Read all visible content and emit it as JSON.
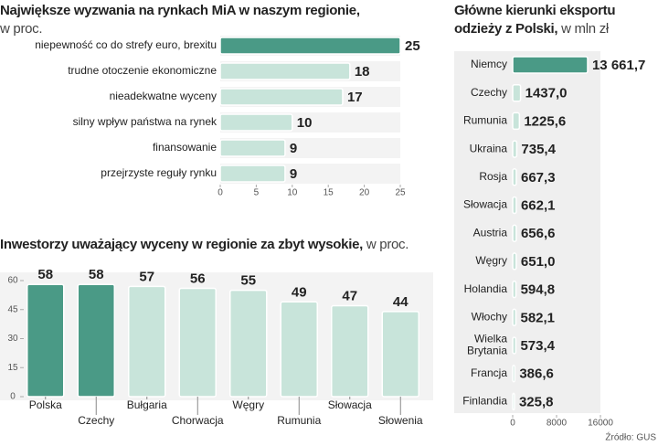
{
  "chart_data": [
    {
      "type": "bar",
      "orientation": "horizontal",
      "title": "Największe wyzwania na rynkach MiA w naszym regionie,",
      "subtitle": "w proc.",
      "categories": [
        "niepewność co do strefy euro, brexitu",
        "trudne otoczenie ekonomiczne",
        "nieadekwatne wyceny",
        "silny wpływ państwa na rynek",
        "finansowanie",
        "przejrzyste reguły rynku"
      ],
      "values": [
        25,
        18,
        17,
        10,
        9,
        9
      ],
      "colors": [
        "#4a9a86",
        "#c8e4da",
        "#c8e4da",
        "#c8e4da",
        "#c8e4da",
        "#c8e4da"
      ],
      "xlim": [
        0,
        25
      ],
      "xticks": [
        0,
        5,
        10,
        15,
        20,
        25
      ]
    },
    {
      "type": "bar",
      "orientation": "vertical",
      "title": "Inwestorzy uważający wyceny w regionie za zbyt wysokie,",
      "subtitle": "w proc.",
      "categories": [
        "Polska",
        "Czechy",
        "Bułgaria",
        "Chorwacja",
        "Węgry",
        "Rumunia",
        "Słowacja",
        "Słowenia"
      ],
      "values": [
        58,
        58,
        57,
        56,
        55,
        49,
        47,
        44
      ],
      "colors": [
        "#4a9a86",
        "#4a9a86",
        "#c8e4da",
        "#c8e4da",
        "#c8e4da",
        "#c8e4da",
        "#c8e4da",
        "#c8e4da"
      ],
      "ylim": [
        0,
        60
      ],
      "yticks": [
        0,
        15,
        30,
        45,
        60
      ]
    },
    {
      "type": "bar",
      "orientation": "horizontal",
      "title": "Główne kierunki eksportu odzieży z Polski,",
      "subtitle": "w mln zł",
      "categories": [
        "Niemcy",
        "Czechy",
        "Rumunia",
        "Ukraina",
        "Rosja",
        "Słowacja",
        "Austria",
        "Węgry",
        "Holandia",
        "Włochy",
        "Wielka Brytania",
        "Francja",
        "Finlandia"
      ],
      "values": [
        13661.7,
        1437.0,
        1225.6,
        735.4,
        667.3,
        662.1,
        656.6,
        651.0,
        594.8,
        582.1,
        573.4,
        386.6,
        325.8
      ],
      "value_labels": [
        "13 661,7",
        "1437,0",
        "1225,6",
        "735,4",
        "667,3",
        "662,1",
        "656,6",
        "651,0",
        "594,8",
        "582,1",
        "573,4",
        "386,6",
        "325,8"
      ],
      "colors": [
        "#4a9a86",
        "#c8e4da",
        "#c8e4da",
        "#c8e4da",
        "#c8e4da",
        "#c8e4da",
        "#c8e4da",
        "#c8e4da",
        "#c8e4da",
        "#c8e4da",
        "#c8e4da",
        "#c8e4da",
        "#c8e4da"
      ],
      "xlim": [
        0,
        16000
      ],
      "xticks": [
        0,
        8000,
        16000
      ],
      "source": "Źródło: GUS"
    }
  ]
}
